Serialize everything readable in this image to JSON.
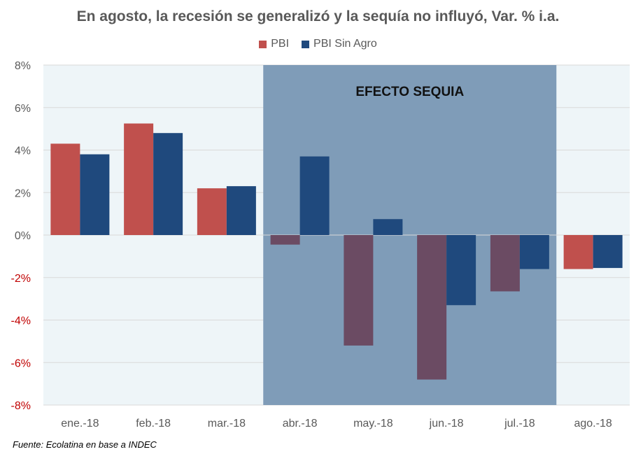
{
  "chart_data": {
    "type": "bar",
    "title": "En agosto, la recesión se generalizó y la sequía no influyó, Var. % i.a.",
    "categories": [
      "ene.-18",
      "feb.-18",
      "mar.-18",
      "abr.-18",
      "may.-18",
      "jun.-18",
      "jul.-18",
      "ago.-18"
    ],
    "series": [
      {
        "name": "PBI",
        "color": "#c0504d",
        "shaded_color": "#6b4b63",
        "values": [
          4.3,
          5.25,
          2.2,
          -0.45,
          -5.2,
          -6.8,
          -2.65,
          -1.6
        ]
      },
      {
        "name": "PBI Sin Agro",
        "color": "#1f497d",
        "values": [
          3.8,
          4.8,
          2.3,
          3.7,
          0.75,
          -3.3,
          -1.6,
          -1.55
        ]
      }
    ],
    "ylim": [
      -8,
      8
    ],
    "yticks": [
      8,
      6,
      4,
      2,
      0,
      -2,
      -4,
      -6,
      -8
    ],
    "ytick_labels": [
      "8%",
      "6%",
      "4%",
      "2%",
      "0%",
      "-2%",
      "-4%",
      "-6%",
      "-8%"
    ],
    "negative_tick_color": "#c00000",
    "positive_tick_color": "#595959",
    "grid": true,
    "legend_position": "top-center",
    "plot_background": "#eef5f8",
    "annotation": {
      "text": "EFECTO SEQUIA",
      "from_category": "abr.-18",
      "to_category": "jul.-18",
      "color": "#7f9cb8"
    }
  },
  "source": "Fuente: Ecolatina en base a INDEC"
}
